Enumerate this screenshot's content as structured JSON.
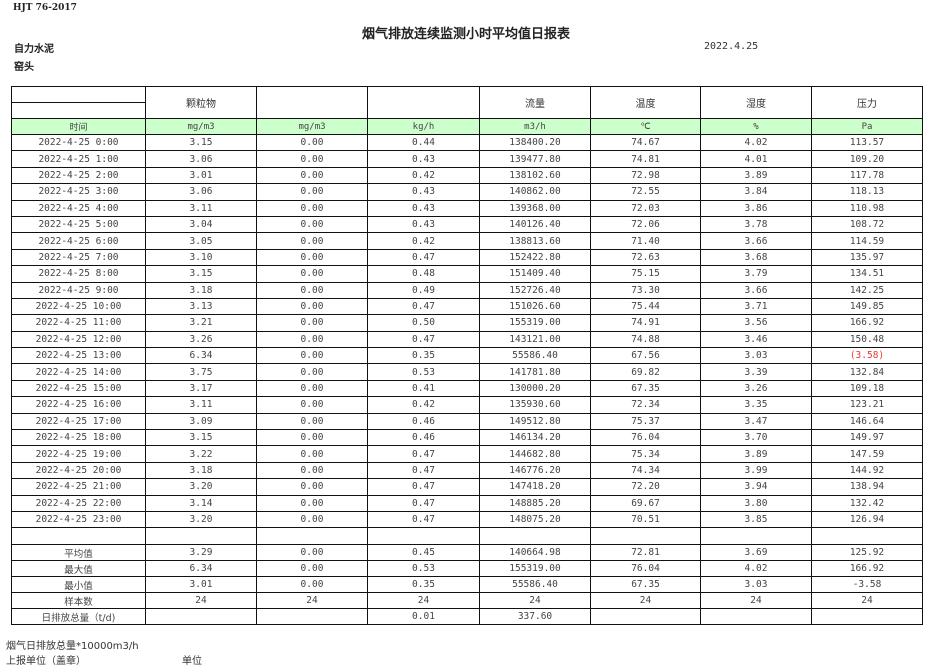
{
  "standard": "HJT  76-2017",
  "title": "烟气排放连续监测小时平均值日报表",
  "company": "自力水泥",
  "date": "2022.4.25",
  "unit": "窑头",
  "header": {
    "names": [
      "",
      "颗粒物",
      "",
      "",
      "流量",
      "温度",
      "湿度",
      "压力"
    ],
    "units": [
      "时间",
      "mg/m3",
      "mg/m3",
      "kg/h",
      "m3/h",
      "℃",
      "%",
      "Pa"
    ]
  },
  "colors": {
    "unit_row_bg": "#ccffcc",
    "alert_text": "#e8393b"
  },
  "rows": [
    [
      "2022-4-25 0:00",
      "3.15",
      "0.00",
      "0.44",
      "138400.20",
      "74.67",
      "4.02",
      "113.57"
    ],
    [
      "2022-4-25 1:00",
      "3.06",
      "0.00",
      "0.43",
      "139477.80",
      "74.81",
      "4.01",
      "109.20"
    ],
    [
      "2022-4-25 2:00",
      "3.01",
      "0.00",
      "0.42",
      "138102.60",
      "72.98",
      "3.89",
      "117.78"
    ],
    [
      "2022-4-25 3:00",
      "3.06",
      "0.00",
      "0.43",
      "140862.00",
      "72.55",
      "3.84",
      "118.13"
    ],
    [
      "2022-4-25 4:00",
      "3.11",
      "0.00",
      "0.43",
      "139368.00",
      "72.03",
      "3.86",
      "110.98"
    ],
    [
      "2022-4-25 5:00",
      "3.04",
      "0.00",
      "0.43",
      "140126.40",
      "72.06",
      "3.78",
      "108.72"
    ],
    [
      "2022-4-25 6:00",
      "3.05",
      "0.00",
      "0.42",
      "138813.60",
      "71.40",
      "3.66",
      "114.59"
    ],
    [
      "2022-4-25 7:00",
      "3.10",
      "0.00",
      "0.47",
      "152422.80",
      "72.63",
      "3.68",
      "135.97"
    ],
    [
      "2022-4-25 8:00",
      "3.15",
      "0.00",
      "0.48",
      "151409.40",
      "75.15",
      "3.79",
      "134.51"
    ],
    [
      "2022-4-25 9:00",
      "3.18",
      "0.00",
      "0.49",
      "152726.40",
      "73.30",
      "3.66",
      "142.25"
    ],
    [
      "2022-4-25 10:00",
      "3.13",
      "0.00",
      "0.47",
      "151026.60",
      "75.44",
      "3.71",
      "149.85"
    ],
    [
      "2022-4-25 11:00",
      "3.21",
      "0.00",
      "0.50",
      "155319.00",
      "74.91",
      "3.56",
      "166.92"
    ],
    [
      "2022-4-25 12:00",
      "3.26",
      "0.00",
      "0.47",
      "143121.00",
      "74.88",
      "3.46",
      "150.48"
    ],
    [
      "2022-4-25 13:00",
      "6.34",
      "0.00",
      "0.35",
      "55586.40",
      "67.56",
      "3.03",
      "(3.58)"
    ],
    [
      "2022-4-25 14:00",
      "3.75",
      "0.00",
      "0.53",
      "141781.80",
      "69.82",
      "3.39",
      "132.84"
    ],
    [
      "2022-4-25 15:00",
      "3.17",
      "0.00",
      "0.41",
      "130000.20",
      "67.35",
      "3.26",
      "109.18"
    ],
    [
      "2022-4-25 16:00",
      "3.11",
      "0.00",
      "0.42",
      "135930.60",
      "72.34",
      "3.35",
      "123.21"
    ],
    [
      "2022-4-25 17:00",
      "3.09",
      "0.00",
      "0.46",
      "149512.80",
      "75.37",
      "3.47",
      "146.64"
    ],
    [
      "2022-4-25 18:00",
      "3.15",
      "0.00",
      "0.46",
      "146134.20",
      "76.04",
      "3.70",
      "149.97"
    ],
    [
      "2022-4-25 19:00",
      "3.22",
      "0.00",
      "0.47",
      "144682.80",
      "75.34",
      "3.89",
      "147.59"
    ],
    [
      "2022-4-25 20:00",
      "3.18",
      "0.00",
      "0.47",
      "146776.20",
      "74.34",
      "3.99",
      "144.92"
    ],
    [
      "2022-4-25 21:00",
      "3.20",
      "0.00",
      "0.47",
      "147418.20",
      "72.20",
      "3.94",
      "138.94"
    ],
    [
      "2022-4-25 22:00",
      "3.14",
      "0.00",
      "0.47",
      "148885.20",
      "69.67",
      "3.80",
      "132.42"
    ],
    [
      "2022-4-25 23:00",
      "3.20",
      "0.00",
      "0.47",
      "148075.20",
      "70.51",
      "3.85",
      "126.94"
    ]
  ],
  "alert_cells": [
    {
      "row": 13,
      "col": 7
    }
  ],
  "summary": [
    [
      "平均值",
      "3.29",
      "0.00",
      "0.45",
      "140664.98",
      "72.81",
      "3.69",
      "125.92"
    ],
    [
      "最大值",
      "6.34",
      "0.00",
      "0.53",
      "155319.00",
      "76.04",
      "4.02",
      "166.92"
    ],
    [
      "最小值",
      "3.01",
      "0.00",
      "0.35",
      "55586.40",
      "67.35",
      "3.03",
      "-3.58"
    ],
    [
      "样本数",
      "24",
      "24",
      "24",
      "24",
      "24",
      "24",
      "24"
    ],
    [
      "日排放总量（t/d)",
      "",
      "",
      "0.01",
      "337.60",
      "",
      "",
      ""
    ]
  ],
  "footer": {
    "note": "烟气日排放总量*10000m3/h",
    "reporter_label": "上报单位（盖章）",
    "reporter_value": "单位"
  }
}
